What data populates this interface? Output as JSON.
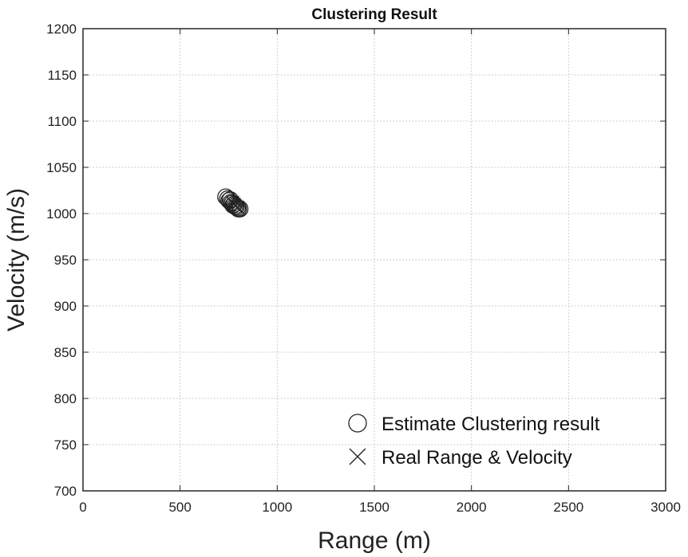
{
  "chart_data": {
    "type": "scatter",
    "title": "Clustering Result",
    "xlabel": "Range (m)",
    "ylabel": "Velocity (m/s)",
    "xlim": [
      0,
      3000
    ],
    "ylim": [
      700,
      1200
    ],
    "xticks": [
      0,
      500,
      1000,
      1500,
      2000,
      2500,
      3000
    ],
    "yticks": [
      700,
      750,
      800,
      850,
      900,
      950,
      1000,
      1050,
      1100,
      1150,
      1200
    ],
    "grid": true,
    "legend_position": "bottom-right",
    "series": [
      {
        "name": "Estimate Clustering result",
        "marker": "circle",
        "color": "#222222",
        "points": [
          {
            "x": 735,
            "y": 1018
          },
          {
            "x": 745,
            "y": 1016
          },
          {
            "x": 752,
            "y": 1014
          },
          {
            "x": 758,
            "y": 1015
          },
          {
            "x": 762,
            "y": 1012
          },
          {
            "x": 768,
            "y": 1011
          },
          {
            "x": 772,
            "y": 1009
          },
          {
            "x": 778,
            "y": 1010
          },
          {
            "x": 782,
            "y": 1008
          },
          {
            "x": 788,
            "y": 1007
          },
          {
            "x": 795,
            "y": 1006
          },
          {
            "x": 800,
            "y": 1005
          },
          {
            "x": 808,
            "y": 1005
          }
        ]
      },
      {
        "name": "Real Range & Velocity",
        "marker": "x",
        "color": "#222222",
        "points": [
          {
            "x": 770,
            "y": 1012
          },
          {
            "x": 778,
            "y": 1010
          },
          {
            "x": 786,
            "y": 1008
          },
          {
            "x": 795,
            "y": 1007
          }
        ]
      }
    ]
  }
}
